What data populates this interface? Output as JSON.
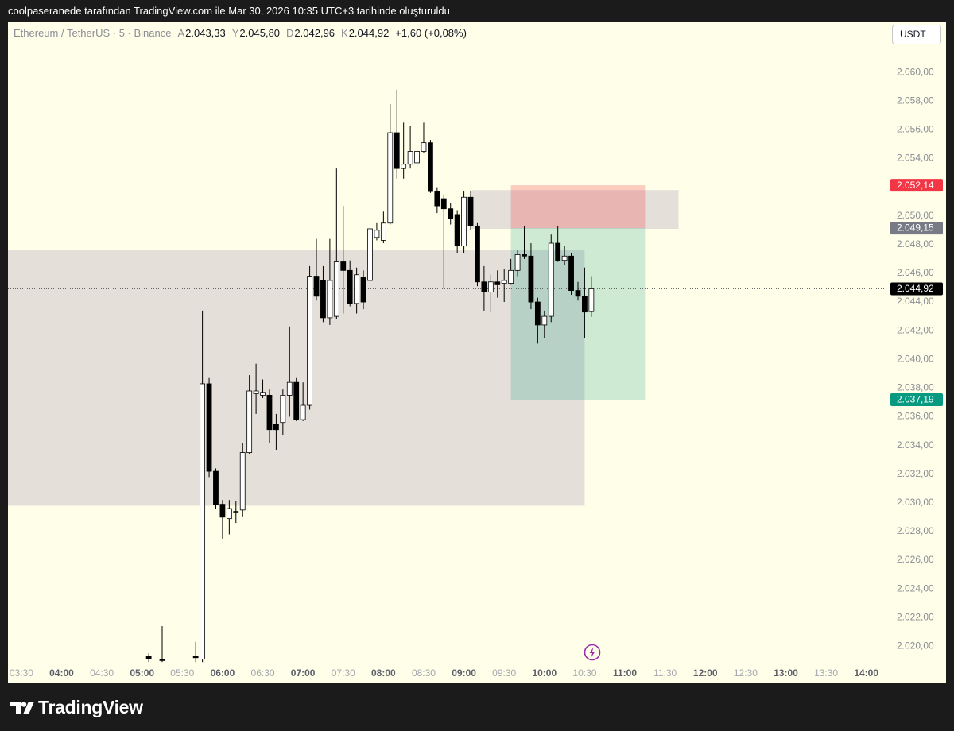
{
  "header": "coolpaseranede tarafından TradingView.com ile Mar 30, 2026 10:35 UTC+3 tarihinde oluşturuldu",
  "brand": "TradingView",
  "chart_data": {
    "type": "candlestick",
    "legend": {
      "symbol": "Ethereum / TetherUS · 5 · Binance",
      "items": [
        {
          "key": "A",
          "label": "2.043,33"
        },
        {
          "key": "Y",
          "label": "2.045,80"
        },
        {
          "key": "D",
          "label": "2.042,96"
        },
        {
          "key": "K",
          "label": "2.044,92"
        }
      ],
      "change": "+1,60 (+0,08%)"
    },
    "currency": "USDT",
    "x": [
      "05:05",
      "05:15",
      "05:40",
      "05:45",
      "05:50",
      "05:55",
      "06:00",
      "06:05",
      "06:10",
      "06:15",
      "06:20",
      "06:25",
      "06:30",
      "06:35",
      "06:40",
      "06:45",
      "06:50",
      "06:55",
      "07:00",
      "07:05",
      "07:10",
      "07:15",
      "07:20",
      "07:25",
      "07:30",
      "07:35",
      "07:40",
      "07:45",
      "07:50",
      "07:55",
      "08:00",
      "08:05",
      "08:10",
      "08:15",
      "08:20",
      "08:25",
      "08:30",
      "08:35",
      "08:40",
      "08:45",
      "08:50",
      "08:55",
      "09:00",
      "09:05",
      "09:10",
      "09:15",
      "09:20",
      "09:25",
      "09:30",
      "09:35",
      "09:40",
      "09:45",
      "09:50",
      "09:55",
      "10:00",
      "10:05",
      "10:10",
      "10:15",
      "10:20",
      "10:25",
      "10:30",
      "10:35"
    ],
    "open": [
      2019.3,
      2019.1,
      2019.3,
      2019.1,
      2038.3,
      2032.2,
      2029.9,
      2028.9,
      2029.3,
      2029.5,
      2033.5,
      2037.6,
      2037.5,
      2037.5,
      2035.5,
      2035.6,
      2037.5,
      2038.4,
      2035.8,
      2036.8,
      2045.8,
      2045.5,
      2042.9,
      2043.0,
      2046.8,
      2046.2,
      2043.9,
      2045.7,
      2045.5,
      2048.5,
      2048.3,
      2049.5,
      2055.8,
      2053.3,
      2053.6,
      2053.7,
      2054.5,
      2055.1,
      2051.7,
      2051.2,
      2050.5,
      2050.1,
      2047.9,
      2051.3,
      2049.3,
      2045.4,
      2044.7,
      2045.4,
      2045.3,
      2045.3,
      2046.2,
      2047.3,
      2047.2,
      2044.0,
      2042.4,
      2043.0,
      2048.1,
      2046.9,
      2047.2,
      2044.8,
      2044.4,
      2043.33
    ],
    "high": [
      2019.5,
      2021.4,
      2020.3,
      2043.4,
      2038.7,
      2032.4,
      2030.2,
      2030.2,
      2030.1,
      2034.2,
      2038.9,
      2039.7,
      2038.6,
      2037.9,
      2036.2,
      2037.9,
      2042.3,
      2038.7,
      2038.4,
      2046.5,
      2048.4,
      2046.5,
      2048.4,
      2053.3,
      2050.7,
      2046.9,
      2046.4,
      2046.2,
      2050.1,
      2049.5,
      2050.3,
      2057.8,
      2058.8,
      2056.5,
      2056.3,
      2054.8,
      2056.5,
      2055.3,
      2052.0,
      2051.5,
      2050.9,
      2050.4,
      2051.7,
      2051.7,
      2049.5,
      2046.5,
      2045.9,
      2046.2,
      2046.3,
      2047.0,
      2047.6,
      2049.3,
      2048.1,
      2044.3,
      2043.4,
      2048.7,
      2049.3,
      2047.9,
      2047.4,
      2045.4,
      2046.4,
      2045.8
    ],
    "low": [
      2018.9,
      2018.9,
      2018.9,
      2018.9,
      2031.8,
      2029.6,
      2027.5,
      2027.8,
      2028.6,
      2029.0,
      2033.4,
      2036.2,
      2037.3,
      2034.2,
      2033.7,
      2034.7,
      2036.0,
      2035.7,
      2035.7,
      2036.5,
      2044.1,
      2042.6,
      2042.4,
      2042.8,
      2043.2,
      2043.7,
      2043.2,
      2043.5,
      2044.5,
      2048.3,
      2048.1,
      2049.4,
      2052.6,
      2052.6,
      2053.3,
      2053.4,
      2054.4,
      2051.6,
      2050.2,
      2045.0,
      2049.4,
      2047.4,
      2047.4,
      2049.0,
      2045.1,
      2043.4,
      2043.3,
      2044.3,
      2044.0,
      2045.2,
      2045.8,
      2047.0,
      2043.5,
      2041.1,
      2041.5,
      2042.6,
      2046.8,
      2046.6,
      2044.5,
      2044.1,
      2041.5,
      2042.96
    ],
    "close": [
      2019.1,
      2019.0,
      2019.2,
      2038.3,
      2032.2,
      2029.9,
      2029.0,
      2029.6,
      2029.4,
      2033.5,
      2037.8,
      2037.8,
      2037.7,
      2035.1,
      2035.1,
      2037.5,
      2038.4,
      2035.8,
      2036.8,
      2045.8,
      2044.4,
      2042.9,
      2045.5,
      2046.8,
      2046.2,
      2043.9,
      2045.9,
      2044.0,
      2049.1,
      2049.0,
      2049.5,
      2055.8,
      2053.3,
      2053.6,
      2054.5,
      2054.5,
      2055.1,
      2051.7,
      2050.7,
      2050.5,
      2049.8,
      2047.9,
      2051.3,
      2049.3,
      2045.4,
      2044.7,
      2045.4,
      2045.2,
      2045.5,
      2046.2,
      2047.3,
      2047.2,
      2044.0,
      2042.4,
      2043.0,
      2048.1,
      2046.9,
      2047.2,
      2044.8,
      2044.4,
      2043.3,
      2044.92
    ],
    "up_color": "#ffffff",
    "down_color": "#000000",
    "wick_color": "#000000",
    "xlim": [
      "03:20",
      "14:15"
    ],
    "xticks": [
      "03:30",
      "04:00",
      "04:30",
      "05:00",
      "05:30",
      "06:00",
      "06:30",
      "07:00",
      "07:30",
      "08:00",
      "08:30",
      "09:00",
      "09:30",
      "10:00",
      "10:30",
      "11:00",
      "11:30",
      "12:00",
      "12:30",
      "13:00",
      "13:30",
      "14:00"
    ],
    "ylim": [
      2018.8,
      2063.5
    ],
    "yticks": [
      {
        "value": 2020,
        "label": "2.020,00"
      },
      {
        "value": 2022,
        "label": "2.022,00"
      },
      {
        "value": 2024,
        "label": "2.024,00"
      },
      {
        "value": 2026,
        "label": "2.026,00"
      },
      {
        "value": 2028,
        "label": "2.028,00"
      },
      {
        "value": 2030,
        "label": "2.030,00"
      },
      {
        "value": 2032,
        "label": "2.032,00"
      },
      {
        "value": 2034,
        "label": "2.034,00"
      },
      {
        "value": 2036,
        "label": "2.036,00"
      },
      {
        "value": 2038,
        "label": "2.038,00"
      },
      {
        "value": 2040,
        "label": "2.040,00"
      },
      {
        "value": 2042,
        "label": "2.042,00"
      },
      {
        "value": 2044,
        "label": "2.044,00"
      },
      {
        "value": 2046,
        "label": "2.046,00"
      },
      {
        "value": 2048,
        "label": "2.048,00"
      },
      {
        "value": 2050,
        "label": "2.050,00"
      },
      {
        "value": 2052,
        "label": "2.052,00"
      },
      {
        "value": 2054,
        "label": "2.054,00"
      },
      {
        "value": 2056,
        "label": "2.056,00"
      },
      {
        "value": 2058,
        "label": "2.058,00"
      },
      {
        "value": 2060,
        "label": "2.060,00"
      }
    ],
    "grid": false,
    "zones": [
      {
        "x": [
          "03:20",
          "10:30"
        ],
        "y": [
          2029.8,
          2047.6
        ],
        "color": "rgba(190,180,195,0.42)"
      },
      {
        "x": [
          "09:05",
          "11:40"
        ],
        "y": [
          2049.1,
          2051.8
        ],
        "color": "rgba(190,180,195,0.42)"
      }
    ],
    "position": {
      "x": [
        "09:35",
        "11:15"
      ],
      "stop": {
        "value": 2052.14,
        "label": "2.052,14"
      },
      "entry": {
        "value": 2049.15,
        "label": "2.049,15"
      },
      "target": {
        "value": 2037.19,
        "label": "2.037,19"
      },
      "stop_color": "rgba(242,54,69,0.25)",
      "target_color": "rgba(8,153,129,0.2)",
      "stop_tag_color": "#f23645",
      "entry_tag_color": "#787b86",
      "target_tag_color": "#089981"
    },
    "last_price": {
      "value": 2044.92,
      "label": "2.044,92",
      "color": "#000000"
    }
  }
}
